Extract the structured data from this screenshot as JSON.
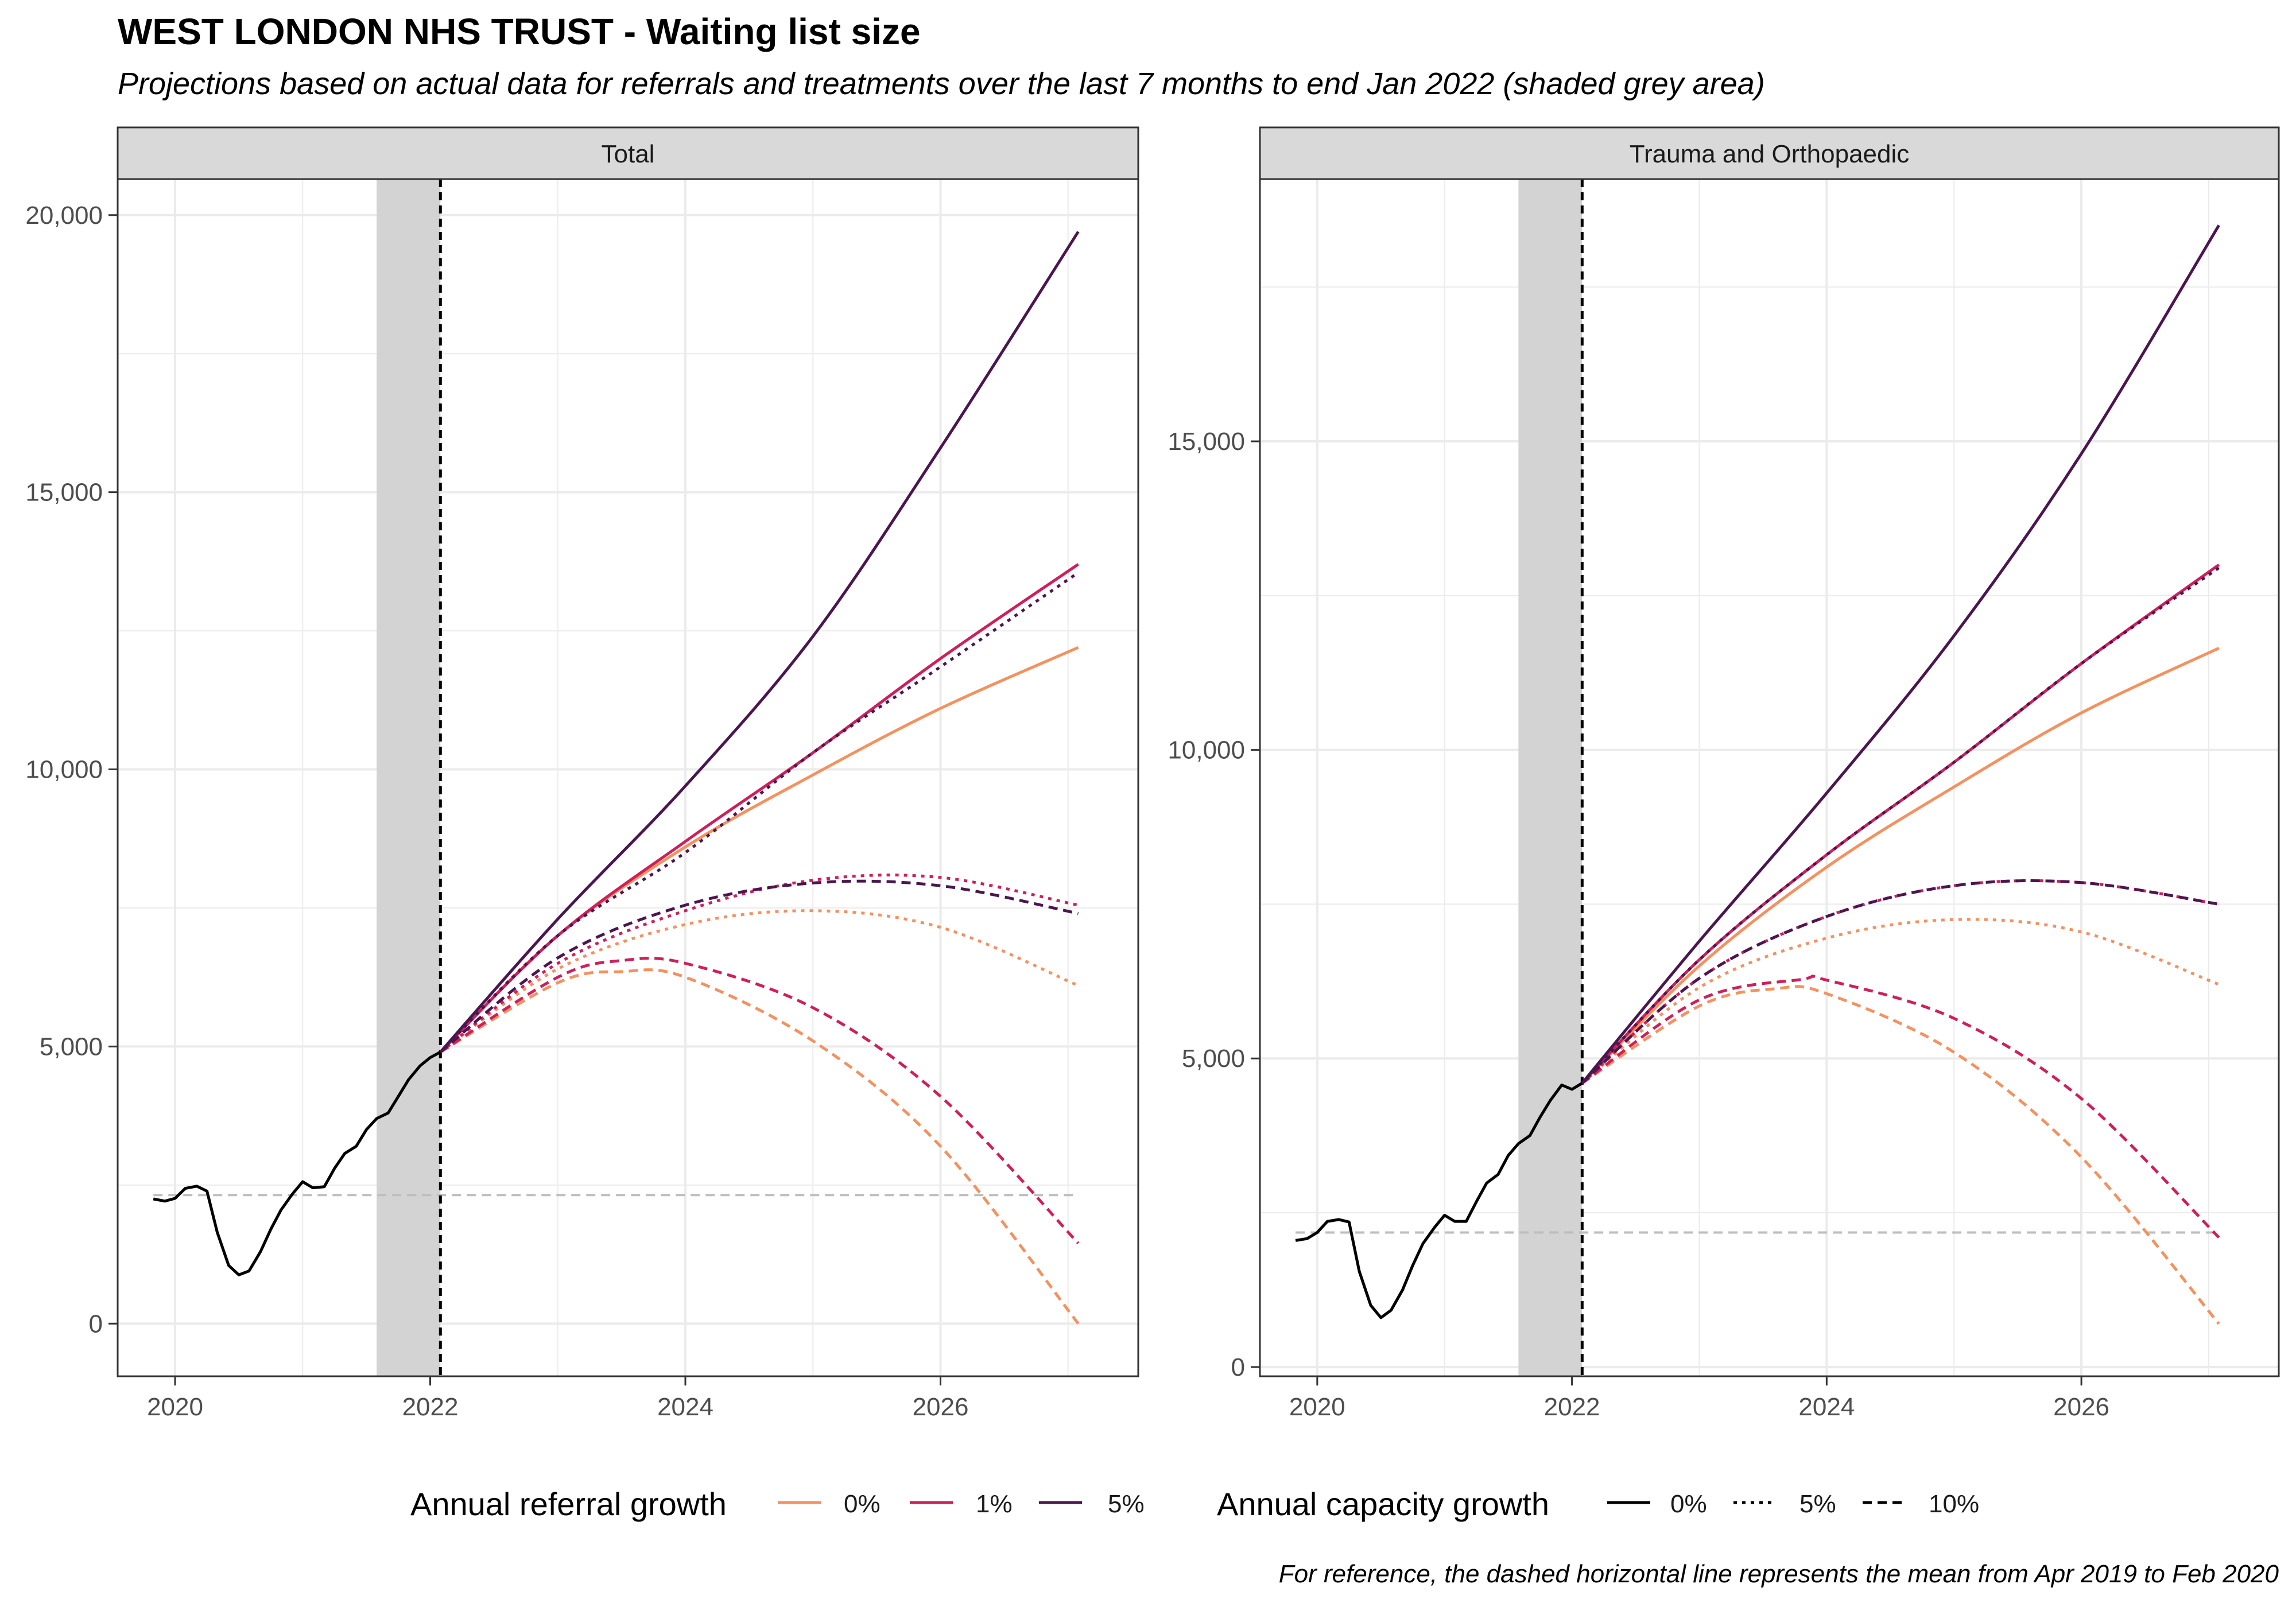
{
  "title": "WEST LONDON NHS TRUST - Waiting list size",
  "subtitle": "Projections based on actual data for referrals and treatments over the last 7 months to end Jan 2022 (shaded grey area)",
  "caption": "For reference, the dashed horizontal line represents the mean from Apr 2019 to Feb 2020",
  "colors": {
    "referral_0": "#F4915F",
    "referral_1": "#CF1F5A",
    "referral_5": "#4B1650",
    "actual": "#000000",
    "reference": "#BEBEBE",
    "shade": "#D3D3D3",
    "strip_fill": "#D9D9D9",
    "grid": "#EBEBEB"
  },
  "legend": {
    "referral_title": "Annual referral growth",
    "referral_items": [
      "0%",
      "1%",
      "5%"
    ],
    "capacity_title": "Annual capacity growth",
    "capacity_items": [
      "0%",
      "5%",
      "10%"
    ]
  },
  "chart_data": [
    {
      "type": "line",
      "panel": "Total",
      "xlim": [
        2019.55,
        2027.55
      ],
      "ylim": [
        -950,
        20650
      ],
      "x_ticks": [
        2020,
        2022,
        2024,
        2026
      ],
      "x_tick_labels": [
        "2020",
        "2022",
        "2024",
        "2026"
      ],
      "y_ticks": [
        0,
        5000,
        10000,
        15000,
        20000
      ],
      "y_tick_labels": [
        "0",
        "5,000",
        "10,000",
        "15,000",
        "20,000"
      ],
      "shaded_period": [
        2021.58,
        2022.08
      ],
      "projection_start": 2022.08,
      "reference_line": 2320,
      "reference_x": [
        2019.83,
        2027.08
      ],
      "actual": {
        "x": [
          2019.83,
          2019.92,
          2020.0,
          2020.08,
          2020.17,
          2020.25,
          2020.33,
          2020.42,
          2020.5,
          2020.58,
          2020.67,
          2020.75,
          2020.83,
          2020.92,
          2021.0,
          2021.08,
          2021.17,
          2021.25,
          2021.33,
          2021.42,
          2021.5,
          2021.58,
          2021.67,
          2021.75,
          2021.83,
          2021.92,
          2022.0,
          2022.08
        ],
        "y": [
          2250,
          2210,
          2260,
          2440,
          2480,
          2390,
          1650,
          1050,
          880,
          950,
          1300,
          1700,
          2050,
          2340,
          2560,
          2450,
          2470,
          2800,
          3070,
          3200,
          3500,
          3700,
          3800,
          4100,
          4400,
          4650,
          4800,
          4900
        ]
      },
      "series": [
        {
          "referral": "0%",
          "capacity": "0%",
          "x": [
            2022.08,
            2023,
            2024,
            2025,
            2026,
            2027.08
          ],
          "y": [
            4900,
            7000,
            8600,
            9900,
            11100,
            12200
          ]
        },
        {
          "referral": "1%",
          "capacity": "0%",
          "x": [
            2022.08,
            2023,
            2024,
            2025,
            2026,
            2027.08
          ],
          "y": [
            4900,
            7000,
            8700,
            10300,
            12000,
            13700
          ]
        },
        {
          "referral": "5%",
          "capacity": "0%",
          "x": [
            2022.08,
            2023,
            2024,
            2025,
            2026,
            2027.08
          ],
          "y": [
            4900,
            7300,
            9700,
            12400,
            15800,
            19700
          ]
        },
        {
          "referral": "0%",
          "capacity": "5%",
          "x": [
            2022.08,
            2023,
            2024,
            2025,
            2026,
            2027.08
          ],
          "y": [
            4900,
            6400,
            7200,
            7450,
            7150,
            6100
          ]
        },
        {
          "referral": "1%",
          "capacity": "5%",
          "x": [
            2022.08,
            2023,
            2024,
            2025,
            2026,
            2027.08
          ],
          "y": [
            4900,
            6500,
            7450,
            8000,
            8050,
            7550
          ]
        },
        {
          "referral": "5%",
          "capacity": "5%",
          "x": [
            2022.08,
            2023,
            2024,
            2025,
            2026,
            2027.08
          ],
          "y": [
            4900,
            7000,
            8500,
            10300,
            11850,
            13550
          ]
        },
        {
          "referral": "0%",
          "capacity": "10%",
          "x": [
            2022.08,
            2023,
            2023.5,
            2024,
            2025,
            2026,
            2027.08
          ],
          "y": [
            4900,
            6150,
            6350,
            6250,
            5100,
            3200,
            0
          ]
        },
        {
          "referral": "1%",
          "capacity": "10%",
          "x": [
            2022.08,
            2023,
            2023.5,
            2024,
            2025,
            2026,
            2027.08
          ],
          "y": [
            4900,
            6250,
            6550,
            6500,
            5700,
            4100,
            1450
          ]
        },
        {
          "referral": "5%",
          "capacity": "10%",
          "x": [
            2022.08,
            2023,
            2024,
            2025,
            2026,
            2027.08
          ],
          "y": [
            4900,
            6600,
            7550,
            7950,
            7900,
            7400
          ]
        }
      ]
    },
    {
      "type": "line",
      "panel": "Trauma and Orthopaedic",
      "xlim": [
        2019.55,
        2027.55
      ],
      "ylim": [
        -150,
        19250
      ],
      "x_ticks": [
        2020,
        2022,
        2024,
        2026
      ],
      "x_tick_labels": [
        "2020",
        "2022",
        "2024",
        "2026"
      ],
      "y_ticks": [
        0,
        5000,
        10000,
        15000
      ],
      "y_tick_labels": [
        "0",
        "5,000",
        "10,000",
        "15,000"
      ],
      "shaded_period": [
        2021.58,
        2022.08
      ],
      "projection_start": 2022.08,
      "reference_line": 2180,
      "reference_x": [
        2019.83,
        2027.08
      ],
      "actual": {
        "x": [
          2019.83,
          2019.92,
          2020.0,
          2020.08,
          2020.17,
          2020.25,
          2020.33,
          2020.42,
          2020.5,
          2020.58,
          2020.67,
          2020.75,
          2020.83,
          2020.92,
          2021.0,
          2021.08,
          2021.17,
          2021.25,
          2021.33,
          2021.42,
          2021.5,
          2021.58,
          2021.67,
          2021.75,
          2021.83,
          2021.92,
          2022.0,
          2022.08
        ],
        "y": [
          2050,
          2080,
          2180,
          2360,
          2390,
          2350,
          1550,
          1000,
          800,
          920,
          1250,
          1650,
          2000,
          2260,
          2460,
          2360,
          2360,
          2680,
          2980,
          3120,
          3430,
          3620,
          3750,
          4050,
          4320,
          4570,
          4500,
          4600
        ]
      },
      "series": [
        {
          "referral": "0%",
          "capacity": "0%",
          "x": [
            2022.08,
            2023,
            2024,
            2025,
            2026,
            2027.08
          ],
          "y": [
            4600,
            6500,
            8100,
            9400,
            10600,
            11650
          ]
        },
        {
          "referral": "1%",
          "capacity": "0%",
          "x": [
            2022.08,
            2023,
            2024,
            2025,
            2026,
            2027.08
          ],
          "y": [
            4600,
            6600,
            8300,
            9800,
            11400,
            13000
          ]
        },
        {
          "referral": "5%",
          "capacity": "0%",
          "x": [
            2022.08,
            2023,
            2024,
            2025,
            2026,
            2027.08
          ],
          "y": [
            4600,
            6900,
            9300,
            11850,
            14800,
            18500
          ]
        },
        {
          "referral": "0%",
          "capacity": "5%",
          "x": [
            2022.08,
            2023,
            2024,
            2025,
            2026,
            2027.08
          ],
          "y": [
            4600,
            6150,
            6950,
            7250,
            7050,
            6200
          ]
        },
        {
          "referral": "1%",
          "capacity": "5%",
          "x": [
            2022.08,
            2023,
            2024,
            2025,
            2026,
            2027.08
          ],
          "y": [
            4600,
            6300,
            7300,
            7800,
            7850,
            7500
          ]
        },
        {
          "referral": "5%",
          "capacity": "5%",
          "x": [
            2022.08,
            2023,
            2024,
            2025,
            2026,
            2027.08
          ],
          "y": [
            4600,
            6600,
            8300,
            9800,
            11400,
            12950
          ]
        },
        {
          "referral": "0%",
          "capacity": "10%",
          "x": [
            2022.08,
            2023,
            2023.6,
            2024,
            2025,
            2026,
            2027.08
          ],
          "y": [
            4600,
            5850,
            6130,
            6050,
            5100,
            3400,
            700
          ]
        },
        {
          "referral": "1%",
          "capacity": "10%",
          "x": [
            2022.08,
            2023,
            2023.8,
            2024,
            2025,
            2026,
            2027.08
          ],
          "y": [
            4600,
            5950,
            6280,
            6270,
            5650,
            4350,
            2100
          ]
        },
        {
          "referral": "5%",
          "capacity": "10%",
          "x": [
            2022.08,
            2023,
            2024,
            2025,
            2026,
            2027.08
          ],
          "y": [
            4600,
            6300,
            7300,
            7800,
            7850,
            7500
          ]
        }
      ]
    }
  ]
}
